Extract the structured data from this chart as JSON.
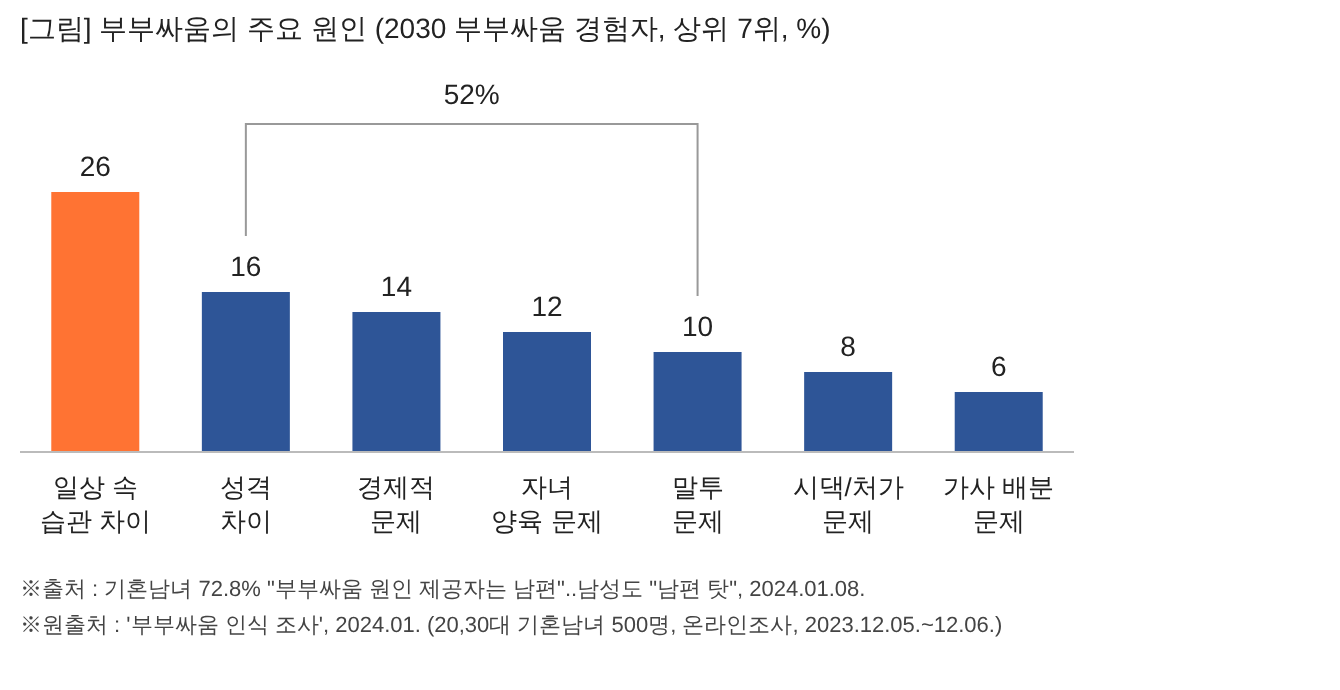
{
  "chart_data": {
    "type": "bar",
    "title": "[그림] 부부싸움의 주요 원인 (2030 부부싸움 경험자, 상위 7위, %)",
    "categories": [
      "일상 속\n습관 차이",
      "성격\n차이",
      "경제적\n문제",
      "자녀\n양육 문제",
      "말투\n문제",
      "시댁/처가\n문제",
      "가사 배분\n문제"
    ],
    "values": [
      26,
      16,
      14,
      12,
      10,
      8,
      6
    ],
    "colors": [
      "#ff7333",
      "#2e5597",
      "#2e5597",
      "#2e5597",
      "#2e5597",
      "#2e5597",
      "#2e5597"
    ],
    "data_labels": true,
    "annotations": [
      "52%",
      "※출처 : 기혼남녀 72.8% \"부부싸움 원인 제공자는 남편\"..남성도 \"남편 탓\", 2024.01.08.",
      "※원출처 : '부부싸움 인식 조사', 2024.01. (20,30대 기혼남녀 500명, 온라인조사, 2023.12.05.~12.06.)"
    ]
  }
}
